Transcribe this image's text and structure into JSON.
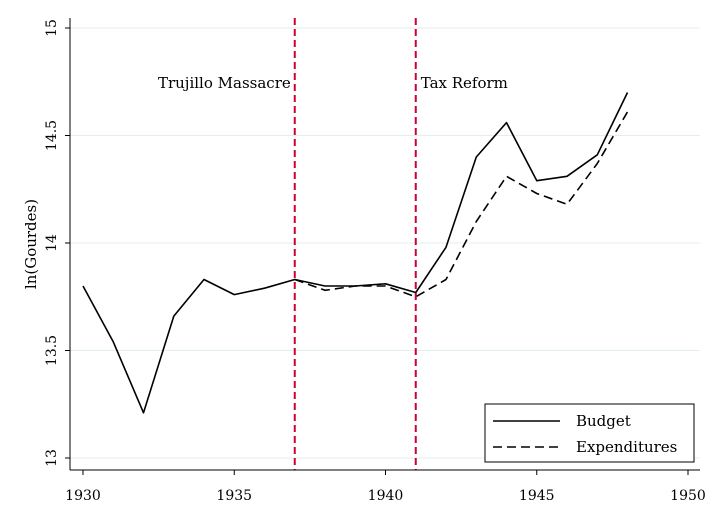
{
  "chart_data": {
    "type": "line",
    "ylabel": "ln(Gourdes)",
    "xlabel": "",
    "xlim": [
      1930,
      1950
    ],
    "ylim": [
      13,
      15
    ],
    "xticks": [
      "1930",
      "1935",
      "1940",
      "1945",
      "1950"
    ],
    "yticks": [
      "13",
      "13.5",
      "14",
      "14.5",
      "15"
    ],
    "grid": true,
    "legend_position": "bottom-right",
    "x": [
      1930,
      1931,
      1932,
      1933,
      1934,
      1935,
      1936,
      1937,
      1938,
      1939,
      1940,
      1941,
      1942,
      1943,
      1944,
      1945,
      1946,
      1947,
      1948
    ],
    "series": [
      {
        "name": "Budget",
        "style": "solid",
        "color": "#000000",
        "values": [
          13.8,
          13.54,
          13.21,
          13.66,
          13.83,
          13.76,
          13.79,
          13.83,
          13.8,
          13.8,
          13.81,
          13.77,
          13.98,
          14.4,
          14.56,
          14.29,
          14.31,
          14.41,
          14.7
        ]
      },
      {
        "name": "Expenditures",
        "style": "dashed",
        "color": "#000000",
        "x": [
          1937,
          1938,
          1939,
          1940,
          1941,
          1942,
          1943,
          1944,
          1945,
          1946,
          1947,
          1948
        ],
        "values": [
          13.83,
          13.78,
          13.8,
          13.8,
          13.75,
          13.83,
          14.1,
          14.31,
          14.23,
          14.18,
          14.37,
          14.61
        ]
      }
    ],
    "vlines": [
      {
        "x": 1937,
        "label": "Trujillo Massacre",
        "label_side": "left",
        "color": "#cc0033"
      },
      {
        "x": 1941,
        "label": "Tax Reform",
        "label_side": "right",
        "color": "#cc0033"
      }
    ]
  }
}
